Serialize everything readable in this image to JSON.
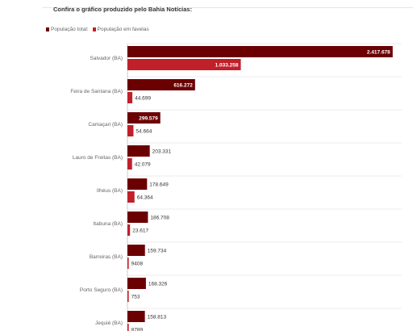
{
  "header": {
    "title": "Confira o gráfico produzido pelo Bahia Notícias:"
  },
  "legend": {
    "placement": "top-left",
    "items": [
      {
        "label": "População total:",
        "color": "#6b0003"
      },
      {
        "label": "População em favelas",
        "color": "#c0202a"
      }
    ]
  },
  "chart_data": {
    "type": "bar",
    "orientation": "horizontal",
    "title": "Confira o gráfico produzido pelo Bahia Notícias:",
    "categories": [
      "Salvador (BA)",
      "Feira de Santana (BA)",
      "Camaçari (BA)",
      "Lauro de Freitas (BA)",
      "Ilhéus (BA)",
      "Itabuna (BA)",
      "Barreiras (BA)",
      "Porto Seguro (BA)",
      "Jequié (BA)"
    ],
    "series": [
      {
        "name": "População total:",
        "color": "#6b0003",
        "values": [
          2417678,
          616272,
          299579,
          203331,
          178649,
          186708,
          159734,
          168326,
          158813
        ],
        "labels": [
          "2.417.678",
          "616.272",
          "299.579",
          "203.331",
          "178.649",
          "186.708",
          "159.734",
          "168.326",
          "158.813"
        ]
      },
      {
        "name": "População em favelas",
        "color": "#c0202a",
        "values": [
          1033258,
          44699,
          54664,
          42079,
          64364,
          23617,
          9408,
          753,
          8789
        ],
        "labels": [
          "1.033.258",
          "44.699",
          "54.664",
          "42.079",
          "64.364",
          "23.617",
          "9408",
          "753",
          "8789"
        ]
      }
    ],
    "xlim": [
      0,
      2500000
    ],
    "grid": true
  }
}
